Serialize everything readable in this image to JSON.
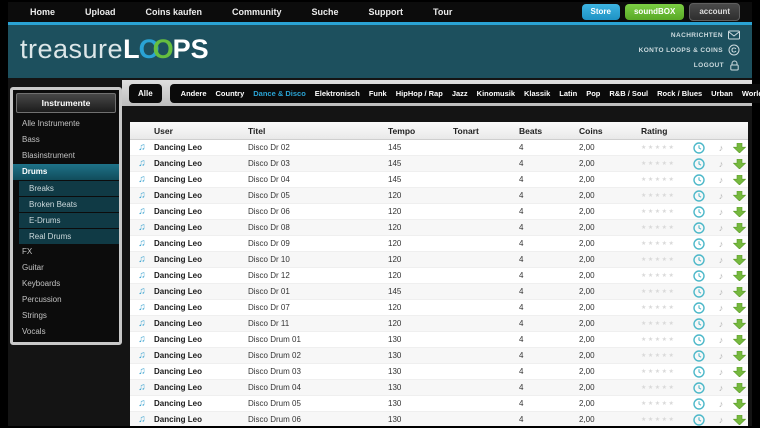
{
  "topnav": {
    "items": [
      "Home",
      "Upload",
      "Coins kaufen",
      "Community",
      "Suche",
      "Support",
      "Tour"
    ]
  },
  "tabs": {
    "store": "Store",
    "soundbox": "soundBOX",
    "account": "account"
  },
  "brand": {
    "treasure": "treasure",
    "l": "L",
    "o1": "O",
    "o2": "O",
    "ps": "PS"
  },
  "user_links": {
    "messages": "NACHRICHTEN",
    "konto": "KONTO LOOPS & COINS",
    "logout": "LOGOUT"
  },
  "genres": {
    "all": "Alle",
    "active": "Dance & Disco",
    "items": [
      "Andere",
      "Country",
      "Dance & Disco",
      "Elektronisch",
      "Funk",
      "HipHop / Rap",
      "Jazz",
      "Kinomusik",
      "Klassik",
      "Latin",
      "Pop",
      "R&B / Soul",
      "Rock / Blues",
      "Urban",
      "World"
    ]
  },
  "sidebar": {
    "title": "Instrumente",
    "items": [
      {
        "label": "Alle Instrumente",
        "type": "item"
      },
      {
        "label": "Bass",
        "type": "item"
      },
      {
        "label": "Blasinstrument",
        "type": "item"
      },
      {
        "label": "Drums",
        "type": "active"
      },
      {
        "label": "Breaks",
        "type": "sub"
      },
      {
        "label": "Broken Beats",
        "type": "sub"
      },
      {
        "label": "E-Drums",
        "type": "sub"
      },
      {
        "label": "Real Drums",
        "type": "sub"
      },
      {
        "label": "FX",
        "type": "item"
      },
      {
        "label": "Guitar",
        "type": "item"
      },
      {
        "label": "Keyboards",
        "type": "item"
      },
      {
        "label": "Percussion",
        "type": "item"
      },
      {
        "label": "Strings",
        "type": "item"
      },
      {
        "label": "Vocals",
        "type": "item"
      }
    ]
  },
  "table": {
    "columns": {
      "user": "User",
      "titel": "Titel",
      "tempo": "Tempo",
      "tonart": "Tonart",
      "beats": "Beats",
      "coins": "Coins",
      "rating": "Rating"
    },
    "stars": "★★★★★",
    "rows": [
      {
        "user": "Dancing Leo",
        "titel": "Disco Dr 02",
        "tempo": "145",
        "tonart": "",
        "beats": "4",
        "coins": "2,00"
      },
      {
        "user": "Dancing Leo",
        "titel": "Disco Dr 03",
        "tempo": "145",
        "tonart": "",
        "beats": "4",
        "coins": "2,00"
      },
      {
        "user": "Dancing Leo",
        "titel": "Disco Dr 04",
        "tempo": "145",
        "tonart": "",
        "beats": "4",
        "coins": "2,00"
      },
      {
        "user": "Dancing Leo",
        "titel": "Disco Dr 05",
        "tempo": "120",
        "tonart": "",
        "beats": "4",
        "coins": "2,00"
      },
      {
        "user": "Dancing Leo",
        "titel": "Disco Dr 06",
        "tempo": "120",
        "tonart": "",
        "beats": "4",
        "coins": "2,00"
      },
      {
        "user": "Dancing Leo",
        "titel": "Disco Dr 08",
        "tempo": "120",
        "tonart": "",
        "beats": "4",
        "coins": "2,00"
      },
      {
        "user": "Dancing Leo",
        "titel": "Disco Dr 09",
        "tempo": "120",
        "tonart": "",
        "beats": "4",
        "coins": "2,00"
      },
      {
        "user": "Dancing Leo",
        "titel": "Disco Dr 10",
        "tempo": "120",
        "tonart": "",
        "beats": "4",
        "coins": "2,00"
      },
      {
        "user": "Dancing Leo",
        "titel": "Disco Dr 12",
        "tempo": "120",
        "tonart": "",
        "beats": "4",
        "coins": "2,00"
      },
      {
        "user": "Dancing Leo",
        "titel": "Disco Dr 01",
        "tempo": "145",
        "tonart": "",
        "beats": "4",
        "coins": "2,00"
      },
      {
        "user": "Dancing Leo",
        "titel": "Disco Dr 07",
        "tempo": "120",
        "tonart": "",
        "beats": "4",
        "coins": "2,00"
      },
      {
        "user": "Dancing Leo",
        "titel": "Disco Dr 11",
        "tempo": "120",
        "tonart": "",
        "beats": "4",
        "coins": "2,00"
      },
      {
        "user": "Dancing Leo",
        "titel": "Disco Drum 01",
        "tempo": "130",
        "tonart": "",
        "beats": "4",
        "coins": "2,00"
      },
      {
        "user": "Dancing Leo",
        "titel": "Disco Drum 02",
        "tempo": "130",
        "tonart": "",
        "beats": "4",
        "coins": "2,00"
      },
      {
        "user": "Dancing Leo",
        "titel": "Disco Drum 03",
        "tempo": "130",
        "tonart": "",
        "beats": "4",
        "coins": "2,00"
      },
      {
        "user": "Dancing Leo",
        "titel": "Disco Drum 04",
        "tempo": "130",
        "tonart": "",
        "beats": "4",
        "coins": "2,00"
      },
      {
        "user": "Dancing Leo",
        "titel": "Disco Drum 05",
        "tempo": "130",
        "tonart": "",
        "beats": "4",
        "coins": "2,00"
      },
      {
        "user": "Dancing Leo",
        "titel": "Disco Drum 06",
        "tempo": "130",
        "tonart": "",
        "beats": "4",
        "coins": "2,00"
      }
    ]
  },
  "colors": {
    "accent_blue": "#2aa3d4",
    "accent_green": "#66bf3f",
    "teal_header": "#1d505e",
    "download_green": "#76b93e",
    "clock_teal": "#4db8c9"
  }
}
